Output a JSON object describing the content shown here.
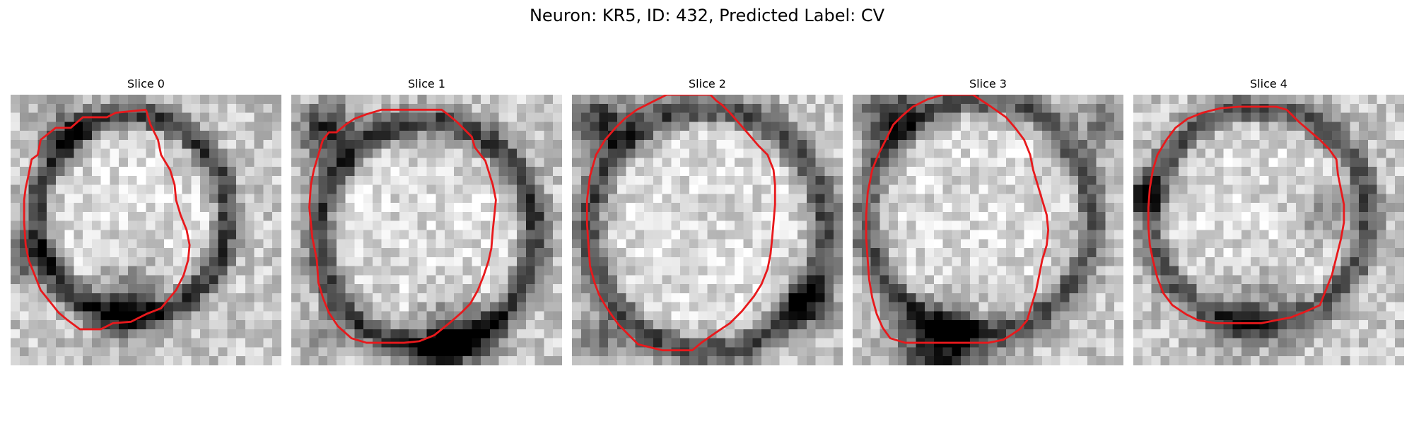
{
  "figure": {
    "title": "Neuron: KR5, ID: 432, Predicted Label: CV"
  },
  "colors": {
    "contour": "#e8191c",
    "colormap": "gray"
  },
  "panels": [
    {
      "title": "Slice 0",
      "image_name": "slice-0-image",
      "tone": "dark ring around a bright, textured cell body",
      "contour": [
        [
          9,
          1
        ],
        [
          7,
          1.2
        ],
        [
          6.4,
          1.5
        ],
        [
          4.8,
          1.5
        ],
        [
          4,
          2.2
        ],
        [
          3,
          2.2
        ],
        [
          2,
          3
        ],
        [
          1.8,
          4
        ],
        [
          1.4,
          4.3
        ],
        [
          1.2,
          5.3
        ],
        [
          1,
          6.2
        ],
        [
          0.9,
          7
        ],
        [
          0.9,
          8.5
        ],
        [
          1,
          10
        ],
        [
          1.2,
          11
        ],
        [
          1.6,
          12
        ],
        [
          2,
          13
        ],
        [
          2.8,
          14
        ],
        [
          3.2,
          14.5
        ],
        [
          3.8,
          15
        ],
        [
          4.6,
          15.6
        ],
        [
          5.6,
          15.6
        ],
        [
          6,
          15.6
        ],
        [
          6.8,
          15.2
        ],
        [
          8,
          15.1
        ],
        [
          9,
          14.6
        ],
        [
          10,
          14.2
        ],
        [
          11,
          13
        ],
        [
          11.5,
          12
        ],
        [
          11.8,
          11
        ],
        [
          11.9,
          10
        ],
        [
          11.7,
          9
        ],
        [
          11.3,
          8
        ],
        [
          11,
          7
        ],
        [
          10.9,
          6
        ],
        [
          10.6,
          5
        ],
        [
          10,
          4
        ],
        [
          9.8,
          3
        ],
        [
          9.3,
          2
        ],
        [
          9,
          1
        ]
      ]
    },
    {
      "title": "Slice 1",
      "image_name": "slice-1-image",
      "tone": "bright cell body with dark boundary, darker at the upper-left and bottom",
      "contour": [
        [
          7,
          1
        ],
        [
          10,
          1
        ],
        [
          10.4,
          1.3
        ],
        [
          11,
          1.8
        ],
        [
          12,
          2.8
        ],
        [
          12.2,
          3.5
        ],
        [
          12.9,
          4.4
        ],
        [
          13.4,
          6
        ],
        [
          13.6,
          7
        ],
        [
          13.4,
          9
        ],
        [
          13.3,
          10.2
        ],
        [
          13.1,
          11.1
        ],
        [
          12.8,
          12
        ],
        [
          12.4,
          13
        ],
        [
          11.9,
          13.9
        ],
        [
          11.3,
          14.5
        ],
        [
          10.5,
          15.2
        ],
        [
          9.5,
          16
        ],
        [
          8.5,
          16.4
        ],
        [
          7.5,
          16.5
        ],
        [
          6,
          16.5
        ],
        [
          5,
          16.5
        ],
        [
          4,
          16.2
        ],
        [
          3.1,
          15.4
        ],
        [
          2.5,
          14.5
        ],
        [
          2.1,
          13.5
        ],
        [
          1.8,
          12.5
        ],
        [
          1.7,
          11
        ],
        [
          1.6,
          10.5
        ],
        [
          1.4,
          9.5
        ],
        [
          1.2,
          7.5
        ],
        [
          1.3,
          6
        ],
        [
          1.5,
          5
        ],
        [
          1.8,
          4
        ],
        [
          2.1,
          3
        ],
        [
          2.5,
          2.5
        ],
        [
          3,
          2.5
        ],
        [
          3.6,
          2
        ],
        [
          4.2,
          1.6
        ],
        [
          5,
          1.3
        ],
        [
          6,
          1
        ],
        [
          7,
          1
        ]
      ]
    },
    {
      "title": "Slice 2",
      "image_name": "slice-2-image",
      "tone": "medium-gray textured cell body inside a dark rim",
      "contour": [
        [
          7,
          0
        ],
        [
          9.2,
          0
        ],
        [
          9.6,
          0.4
        ],
        [
          10,
          0.7
        ],
        [
          10.5,
          1.2
        ],
        [
          11.2,
          2
        ],
        [
          11.8,
          2.7
        ],
        [
          12.4,
          3.4
        ],
        [
          13,
          4
        ],
        [
          13.4,
          5
        ],
        [
          13.5,
          6
        ],
        [
          13.5,
          7.3
        ],
        [
          13.4,
          8.5
        ],
        [
          13.3,
          9.6
        ],
        [
          13.2,
          10.6
        ],
        [
          13,
          11.6
        ],
        [
          12.6,
          12.6
        ],
        [
          12.1,
          13.4
        ],
        [
          11.3,
          14.4
        ],
        [
          10.5,
          15.2
        ],
        [
          9.6,
          15.8
        ],
        [
          8.6,
          16.5
        ],
        [
          8,
          17
        ],
        [
          6,
          17
        ],
        [
          5.2,
          16.8
        ],
        [
          4.4,
          16.6
        ],
        [
          3.8,
          16
        ],
        [
          3.1,
          15.3
        ],
        [
          2.6,
          14.6
        ],
        [
          2.2,
          14
        ],
        [
          1.8,
          13.3
        ],
        [
          1.5,
          12.5
        ],
        [
          1.2,
          11.4
        ],
        [
          1.1,
          10
        ],
        [
          1,
          8.6
        ],
        [
          1,
          7
        ],
        [
          1.2,
          5.4
        ],
        [
          1.6,
          4
        ],
        [
          2.2,
          3
        ],
        [
          2.9,
          2.2
        ],
        [
          3.5,
          1.6
        ],
        [
          4.3,
          1
        ],
        [
          5.3,
          0.5
        ],
        [
          6.3,
          0
        ],
        [
          7,
          0
        ]
      ]
    },
    {
      "title": "Slice 3",
      "image_name": "slice-3-image",
      "tone": "bright noisy cell body with dark lower region",
      "contour": [
        [
          6,
          0
        ],
        [
          8,
          0
        ],
        [
          8.6,
          0.4
        ],
        [
          9.2,
          0.8
        ],
        [
          10.2,
          1.5
        ],
        [
          10.8,
          2.2
        ],
        [
          11.4,
          3
        ],
        [
          11.8,
          4
        ],
        [
          12,
          5
        ],
        [
          12.3,
          6
        ],
        [
          12.6,
          7
        ],
        [
          12.9,
          8
        ],
        [
          13,
          9
        ],
        [
          12.9,
          10
        ],
        [
          12.6,
          11
        ],
        [
          12.4,
          12
        ],
        [
          12.2,
          13
        ],
        [
          11.9,
          14
        ],
        [
          11.6,
          15
        ],
        [
          11.1,
          15.6
        ],
        [
          10.5,
          16
        ],
        [
          10,
          16.3
        ],
        [
          9,
          16.5
        ],
        [
          7,
          16.5
        ],
        [
          5,
          16.5
        ],
        [
          3.5,
          16.5
        ],
        [
          2.5,
          16.2
        ],
        [
          2,
          15.5
        ],
        [
          1.6,
          14.6
        ],
        [
          1.3,
          13.5
        ],
        [
          1.1,
          12.3
        ],
        [
          1,
          11
        ],
        [
          0.9,
          9.5
        ],
        [
          0.9,
          8
        ],
        [
          1,
          6.5
        ],
        [
          1.3,
          5
        ],
        [
          1.7,
          4
        ],
        [
          2.2,
          3
        ],
        [
          2.7,
          2
        ],
        [
          3.3,
          1.4
        ],
        [
          4,
          0.8
        ],
        [
          5,
          0.3
        ],
        [
          6,
          0
        ]
      ]
    },
    {
      "title": "Slice 4",
      "image_name": "slice-4-image",
      "tone": "bright cell body with darker patches on the right and lower rim",
      "contour": [
        [
          8,
          0.8
        ],
        [
          9.5,
          0.8
        ],
        [
          10.2,
          1
        ],
        [
          11,
          1.8
        ],
        [
          11.7,
          2.4
        ],
        [
          12.4,
          3
        ],
        [
          13,
          3.6
        ],
        [
          13.5,
          4.3
        ],
        [
          13.6,
          5.3
        ],
        [
          13.8,
          6.3
        ],
        [
          14,
          7.3
        ],
        [
          14,
          8.5
        ],
        [
          13.8,
          9.6
        ],
        [
          13.5,
          10.8
        ],
        [
          13.2,
          12
        ],
        [
          12.8,
          13
        ],
        [
          12.4,
          14
        ],
        [
          11.5,
          14.4
        ],
        [
          10.5,
          14.8
        ],
        [
          9.5,
          15
        ],
        [
          8.5,
          15.2
        ],
        [
          7,
          15.2
        ],
        [
          5.5,
          15.2
        ],
        [
          4.3,
          15
        ],
        [
          3.5,
          14.6
        ],
        [
          2.6,
          14
        ],
        [
          2,
          13.2
        ],
        [
          1.6,
          12.2
        ],
        [
          1.3,
          11
        ],
        [
          1.1,
          10
        ],
        [
          1,
          8.8
        ],
        [
          1,
          7.5
        ],
        [
          1.1,
          6.2
        ],
        [
          1.3,
          5
        ],
        [
          1.6,
          4
        ],
        [
          2.2,
          3
        ],
        [
          2.8,
          2.2
        ],
        [
          3.6,
          1.6
        ],
        [
          4.6,
          1.2
        ],
        [
          5.8,
          0.9
        ],
        [
          7,
          0.8
        ],
        [
          8,
          0.8
        ]
      ]
    }
  ]
}
